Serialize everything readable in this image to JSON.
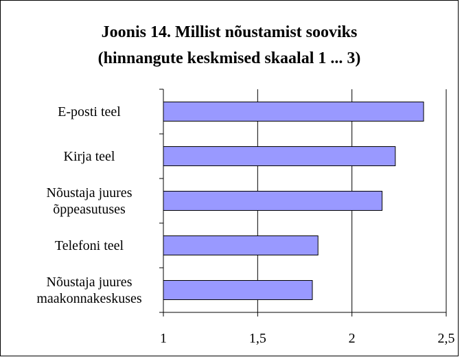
{
  "chart_data": {
    "type": "bar",
    "orientation": "horizontal",
    "title": "Joonis 14. Millist nõustamist sooviks",
    "subtitle": "(hinnangute keskmised skaalal 1 ... 3)",
    "categories": [
      "E-posti teel",
      "Kirja teel",
      "Nõustaja juures õppeasutuses",
      "Telefoni teel",
      "Nõustaja juures maakonnakeskuses"
    ],
    "values": [
      2.38,
      2.23,
      2.16,
      1.82,
      1.79
    ],
    "color": "#9999ff",
    "xlim": [
      1,
      2.5
    ],
    "xticks": [
      1,
      {
        "value": 1.5,
        "label": "1,5"
      },
      2,
      {
        "value": 2.5,
        "label": "2,5"
      }
    ],
    "grid": true
  }
}
